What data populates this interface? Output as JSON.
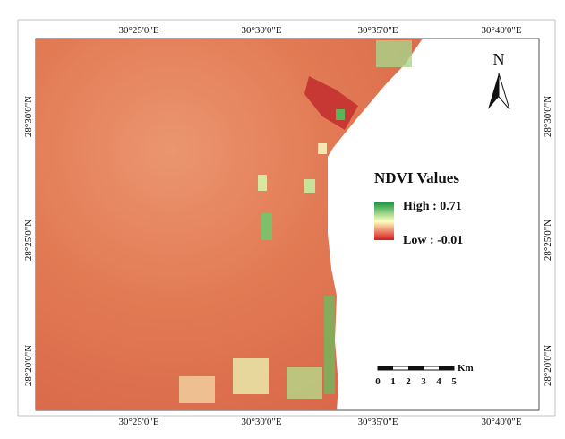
{
  "map": {
    "top_labels": [
      "30°25'0\"E",
      "30°30'0\"E",
      "30°35'0\"E",
      "30°40'0\"E"
    ],
    "bottom_labels": [
      "30°25'0\"E",
      "30°30'0\"E",
      "30°35'0\"E",
      "30°40'0\"E"
    ],
    "left_labels": [
      "28°30'0\"N",
      "28°25'0\"N",
      "28°20'0\"N"
    ],
    "right_labels": [
      "28°30'0\"N",
      "28°25'0\"N",
      "28°20'0\"N"
    ],
    "north": "N",
    "legend": {
      "title": "NDVI Values",
      "high": "High : 0.71",
      "low": "Low : -0.01"
    },
    "scale_bar": {
      "ticks": [
        "0",
        "1",
        "2",
        "3",
        "4",
        "5"
      ],
      "unit": "Km"
    }
  }
}
